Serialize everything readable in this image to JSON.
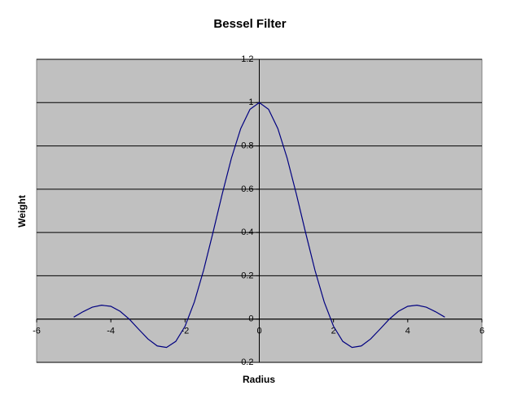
{
  "chart_data": {
    "type": "line",
    "title": "Bessel Filter",
    "x_label": "Radius",
    "y_label": "Weight",
    "x": [
      -5,
      -4.75,
      -4.5,
      -4.25,
      -4,
      -3.75,
      -3.5,
      -3.25,
      -3,
      -2.75,
      -2.5,
      -2.25,
      -2,
      -1.75,
      -1.5,
      -1.25,
      -1,
      -0.75,
      -0.5,
      -0.25,
      0,
      0.25,
      0.5,
      0.75,
      1,
      1.25,
      1.5,
      1.75,
      2,
      2.25,
      2.5,
      2.75,
      3,
      3.25,
      3.5,
      3.75,
      4,
      4.25,
      4.5,
      4.75,
      5
    ],
    "series": [
      {
        "name": "Weight",
        "color": "#000080",
        "values": [
          0.009,
          0.034,
          0.055,
          0.064,
          0.059,
          0.036,
          -0.001,
          -0.047,
          -0.092,
          -0.124,
          -0.131,
          -0.103,
          -0.033,
          0.079,
          0.226,
          0.398,
          0.577,
          0.744,
          0.88,
          0.969,
          1,
          0.969,
          0.88,
          0.744,
          0.577,
          0.398,
          0.226,
          0.079,
          -0.033,
          -0.103,
          -0.131,
          -0.124,
          -0.092,
          -0.047,
          -0.001,
          0.036,
          0.059,
          0.064,
          0.055,
          0.034,
          0.009
        ]
      }
    ],
    "xlim": [
      -6,
      6
    ],
    "xticks": [
      -6,
      -4,
      -2,
      0,
      2,
      4,
      6
    ],
    "ylim": [
      -0.2,
      1.2
    ],
    "yticks": [
      -0.2,
      0,
      0.2,
      0.4,
      0.6,
      0.8,
      1,
      1.2
    ],
    "grid": true
  }
}
